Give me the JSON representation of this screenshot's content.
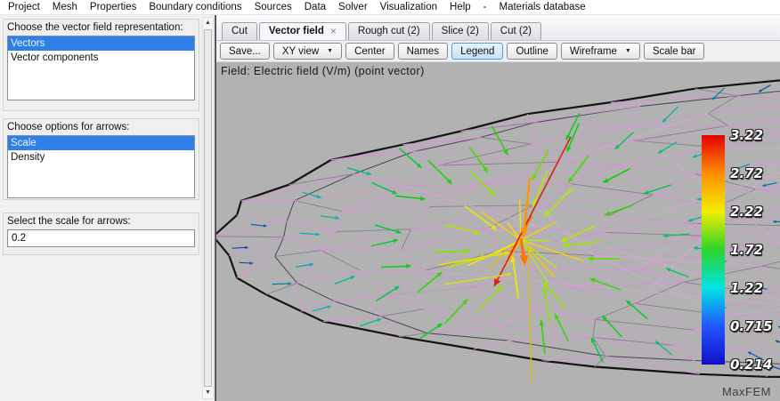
{
  "icons": {
    "close": "×",
    "dropdown": "▼",
    "scroll_up": "▲",
    "scroll_down": "▼"
  },
  "menu": {
    "items": [
      "Project",
      "Mesh",
      "Properties",
      "Boundary conditions",
      "Sources",
      "Data",
      "Solver",
      "Visualization",
      "Help",
      "-",
      "Materials database"
    ]
  },
  "sidebar": {
    "panels": [
      {
        "label": "Choose the vector field representation:",
        "options": [
          {
            "label": "Vectors",
            "selected": true
          },
          {
            "label": "Vector components",
            "selected": false
          }
        ]
      },
      {
        "label": "Choose options for arrows:",
        "options": [
          {
            "label": "Scale",
            "selected": true
          },
          {
            "label": "Density",
            "selected": false
          }
        ]
      },
      {
        "label": "Select the scale for arrows:",
        "value": "0.2"
      }
    ]
  },
  "tabs": [
    {
      "label": "Cut",
      "active": false,
      "closable": false
    },
    {
      "label": "Vector field",
      "active": true,
      "closable": true
    },
    {
      "label": "Rough cut (2)",
      "active": false,
      "closable": false
    },
    {
      "label": "Slice (2)",
      "active": false,
      "closable": false
    },
    {
      "label": "Cut (2)",
      "active": false,
      "closable": false
    }
  ],
  "toolbar": {
    "buttons": [
      {
        "label": "Save...",
        "dropdown": false,
        "active": false
      },
      {
        "label": "XY view",
        "dropdown": true,
        "active": false
      },
      {
        "label": "Center",
        "dropdown": false,
        "active": false
      },
      {
        "label": "Names",
        "dropdown": false,
        "active": false
      },
      {
        "label": "Legend",
        "dropdown": false,
        "active": true
      },
      {
        "label": "Outline",
        "dropdown": false,
        "active": false
      },
      {
        "label": "Wireframe",
        "dropdown": true,
        "active": false
      },
      {
        "label": "Scale bar",
        "dropdown": false,
        "active": false
      }
    ]
  },
  "canvas": {
    "field_label": "Field: Electric field (V/m) (point vector)",
    "watermark": "MaxFEM",
    "legend": {
      "values": [
        "3.22",
        "2.72",
        "2.22",
        "1.72",
        "1.22",
        "0.715",
        "0.214"
      ],
      "colors": [
        "#e40000",
        "#ff8c00",
        "#f2ee00",
        "#2cd42c",
        "#00e4e4",
        "#2255ff",
        "#1010c8"
      ]
    },
    "visualization": {
      "type": "vector-field",
      "background": "#b2b2b2",
      "outline_color": "#141414",
      "mesh_colors": [
        "#d693d6",
        "#8e8096",
        "#474750"
      ],
      "value_min": 0.214,
      "value_max": 3.22,
      "colormap": "rainbow"
    }
  }
}
